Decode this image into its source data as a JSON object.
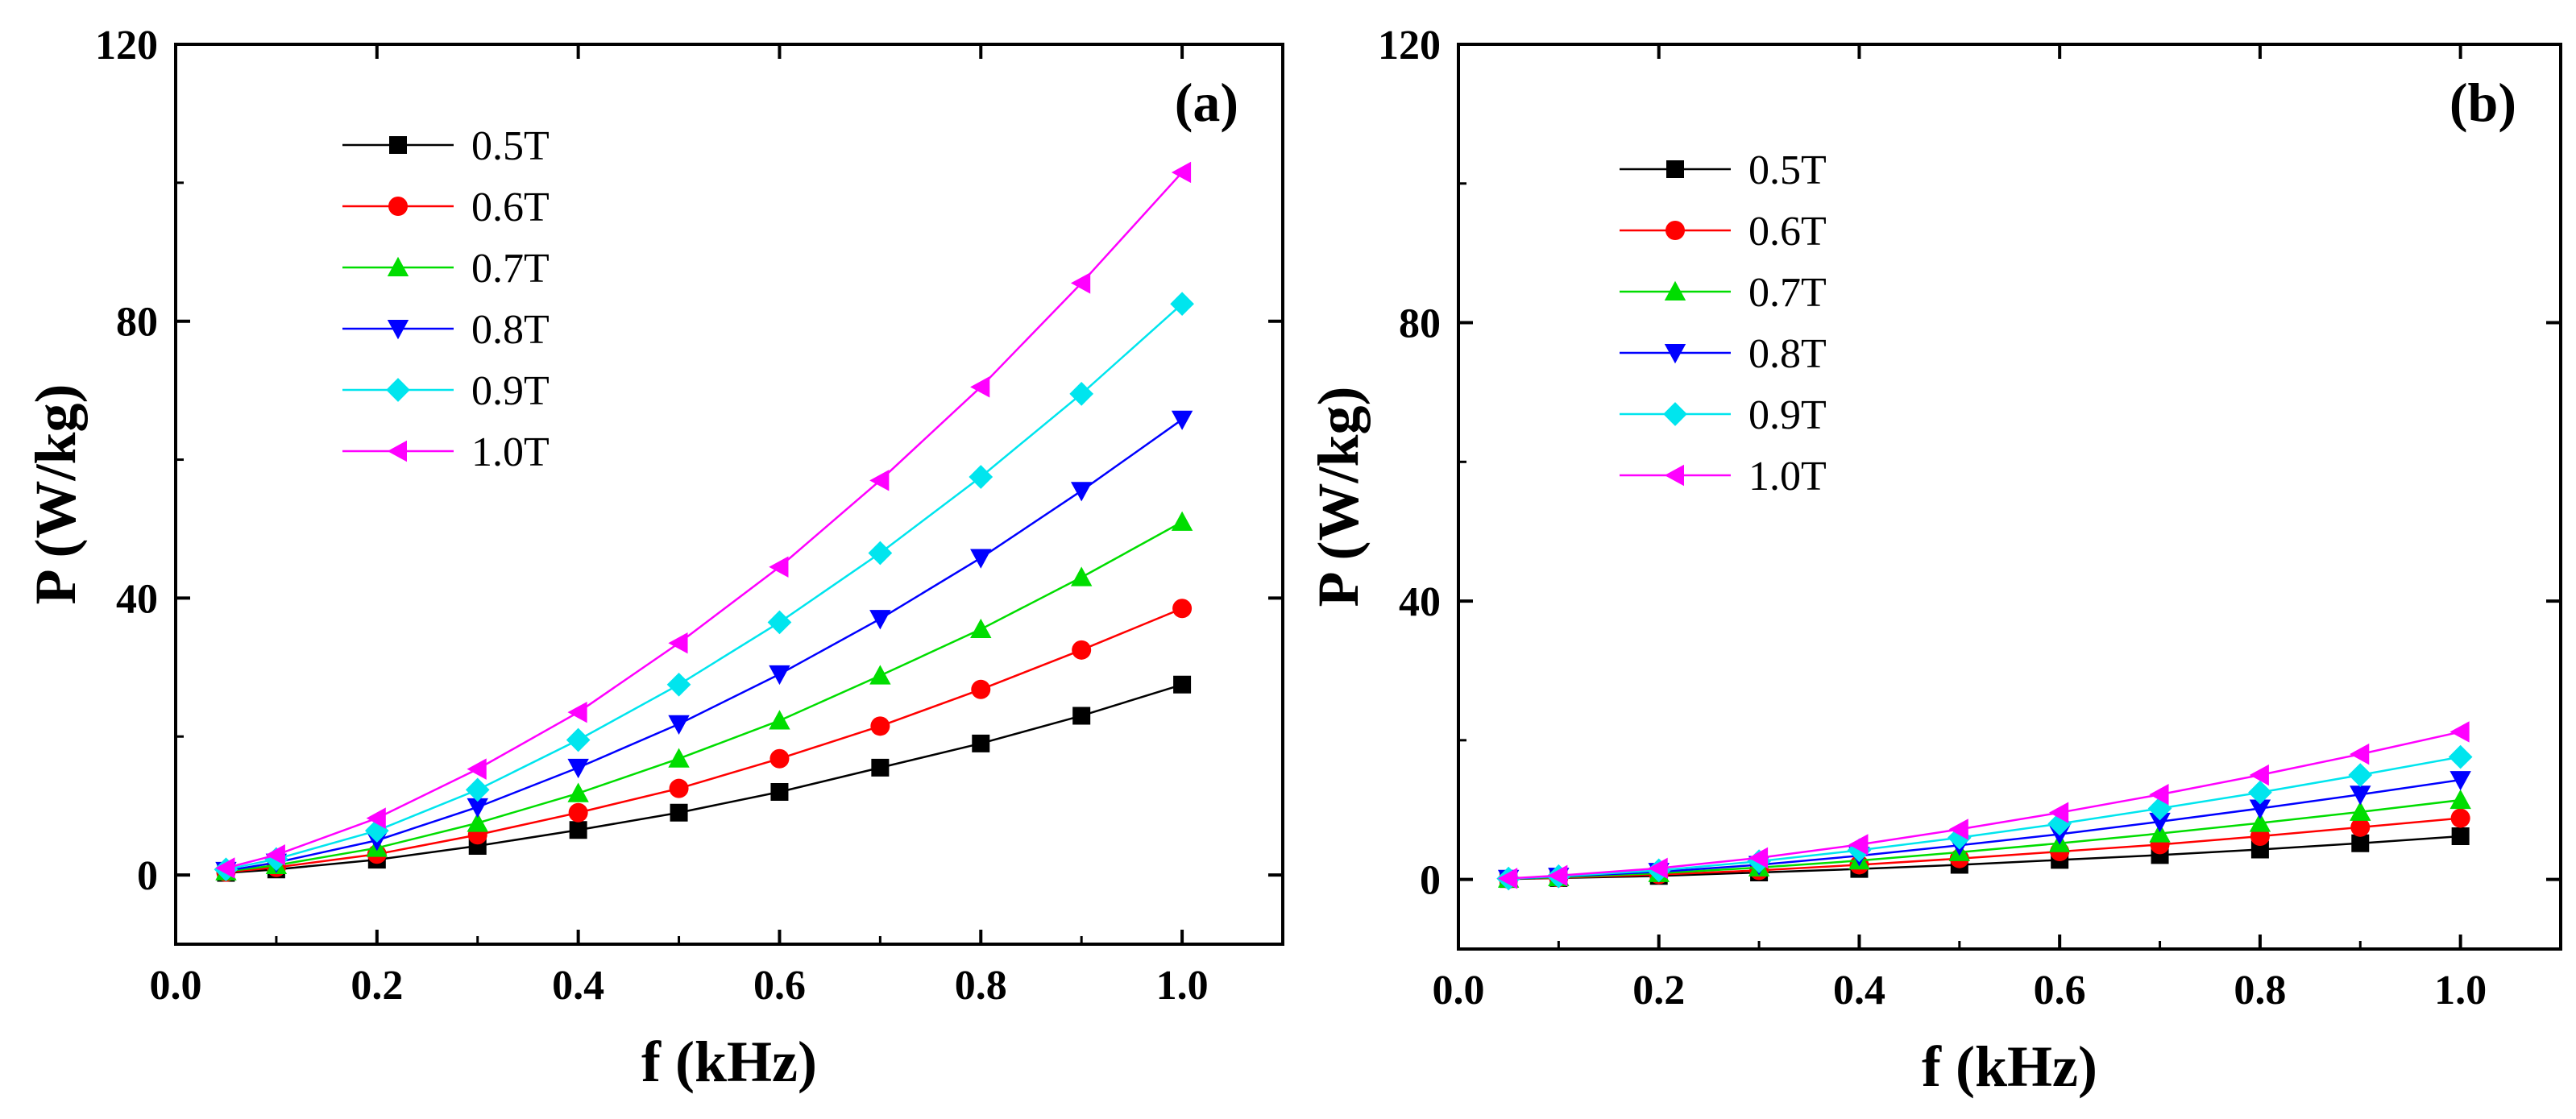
{
  "chart_data": [
    {
      "type": "line",
      "panel_label": "(a)",
      "xlabel": "f (kHz)",
      "ylabel": "P (W/kg)",
      "xlim": [
        0,
        1.1
      ],
      "ylim": [
        -10,
        120
      ],
      "xticks": [
        0.0,
        0.2,
        0.4,
        0.6,
        0.8,
        1.0
      ],
      "xtick_labels": [
        "0.0",
        "0.2",
        "0.4",
        "0.6",
        "0.8",
        "1.0"
      ],
      "yticks": [
        0,
        40,
        80,
        120
      ],
      "ytick_labels": [
        "0",
        "40",
        "80",
        "120"
      ],
      "legend_position": "top-left",
      "x": [
        0.05,
        0.1,
        0.2,
        0.3,
        0.4,
        0.5,
        0.6,
        0.7,
        0.8,
        0.9,
        1.0
      ],
      "series": [
        {
          "name": "0.5T",
          "color": "#000000",
          "marker": "square",
          "values": [
            0.3,
            0.8,
            2.2,
            4.2,
            6.5,
            9.0,
            12.0,
            15.5,
            19.0,
            23.0,
            27.5
          ]
        },
        {
          "name": "0.6T",
          "color": "#ff0000",
          "marker": "circle",
          "values": [
            0.4,
            1.1,
            3.0,
            5.8,
            9.0,
            12.5,
            16.8,
            21.5,
            26.8,
            32.5,
            38.5
          ]
        },
        {
          "name": "0.7T",
          "color": "#00dd00",
          "marker": "triangle-up",
          "values": [
            0.5,
            1.4,
            3.9,
            7.5,
            11.8,
            16.8,
            22.3,
            28.8,
            35.5,
            43.0,
            51.0
          ]
        },
        {
          "name": "0.8T",
          "color": "#0000ff",
          "marker": "triangle-down",
          "values": [
            0.6,
            1.8,
            5.0,
            9.8,
            15.5,
            21.8,
            29.0,
            37.0,
            45.8,
            55.5,
            65.8
          ]
        },
        {
          "name": "0.9T",
          "color": "#00e5ee",
          "marker": "diamond",
          "values": [
            0.8,
            2.3,
            6.4,
            12.3,
            19.5,
            27.5,
            36.5,
            46.5,
            57.5,
            69.5,
            82.5
          ]
        },
        {
          "name": "1.0T",
          "color": "#ff00ff",
          "marker": "triangle-left",
          "values": [
            1.0,
            2.9,
            8.2,
            15.3,
            23.5,
            33.5,
            44.5,
            57.0,
            70.5,
            85.5,
            101.5
          ]
        }
      ]
    },
    {
      "type": "line",
      "panel_label": "(b)",
      "xlabel": "f (kHz)",
      "ylabel": "P (W/kg)",
      "xlim": [
        0,
        1.1
      ],
      "ylim": [
        -10,
        120
      ],
      "xticks": [
        0.0,
        0.2,
        0.4,
        0.6,
        0.8,
        1.0
      ],
      "xtick_labels": [
        "0.0",
        "0.2",
        "0.4",
        "0.6",
        "0.8",
        "1.0"
      ],
      "yticks": [
        0,
        40,
        80,
        120
      ],
      "ytick_labels": [
        "0",
        "40",
        "80",
        "120"
      ],
      "legend_position": "top-left",
      "x": [
        0.05,
        0.1,
        0.2,
        0.3,
        0.4,
        0.5,
        0.6,
        0.7,
        0.8,
        0.9,
        1.0
      ],
      "series": [
        {
          "name": "0.5T",
          "color": "#000000",
          "marker": "square",
          "values": [
            0.05,
            0.2,
            0.5,
            1.0,
            1.5,
            2.1,
            2.8,
            3.5,
            4.3,
            5.2,
            6.2
          ]
        },
        {
          "name": "0.6T",
          "color": "#ff0000",
          "marker": "circle",
          "values": [
            0.07,
            0.25,
            0.7,
            1.3,
            2.1,
            3.0,
            4.0,
            5.0,
            6.2,
            7.5,
            8.8
          ]
        },
        {
          "name": "0.7T",
          "color": "#00dd00",
          "marker": "triangle-up",
          "values": [
            0.08,
            0.3,
            0.9,
            1.7,
            2.7,
            3.9,
            5.2,
            6.6,
            8.1,
            9.7,
            11.4
          ]
        },
        {
          "name": "0.8T",
          "color": "#0000ff",
          "marker": "triangle-down",
          "values": [
            0.1,
            0.4,
            1.1,
            2.1,
            3.4,
            4.9,
            6.5,
            8.3,
            10.2,
            12.2,
            14.3
          ]
        },
        {
          "name": "0.9T",
          "color": "#00e5ee",
          "marker": "diamond",
          "values": [
            0.12,
            0.45,
            1.3,
            2.6,
            4.2,
            6.0,
            8.0,
            10.2,
            12.5,
            15.0,
            17.6
          ]
        },
        {
          "name": "1.0T",
          "color": "#ff00ff",
          "marker": "triangle-left",
          "values": [
            0.15,
            0.55,
            1.6,
            3.1,
            5.0,
            7.2,
            9.6,
            12.2,
            15.0,
            18.0,
            21.2
          ]
        }
      ]
    }
  ]
}
